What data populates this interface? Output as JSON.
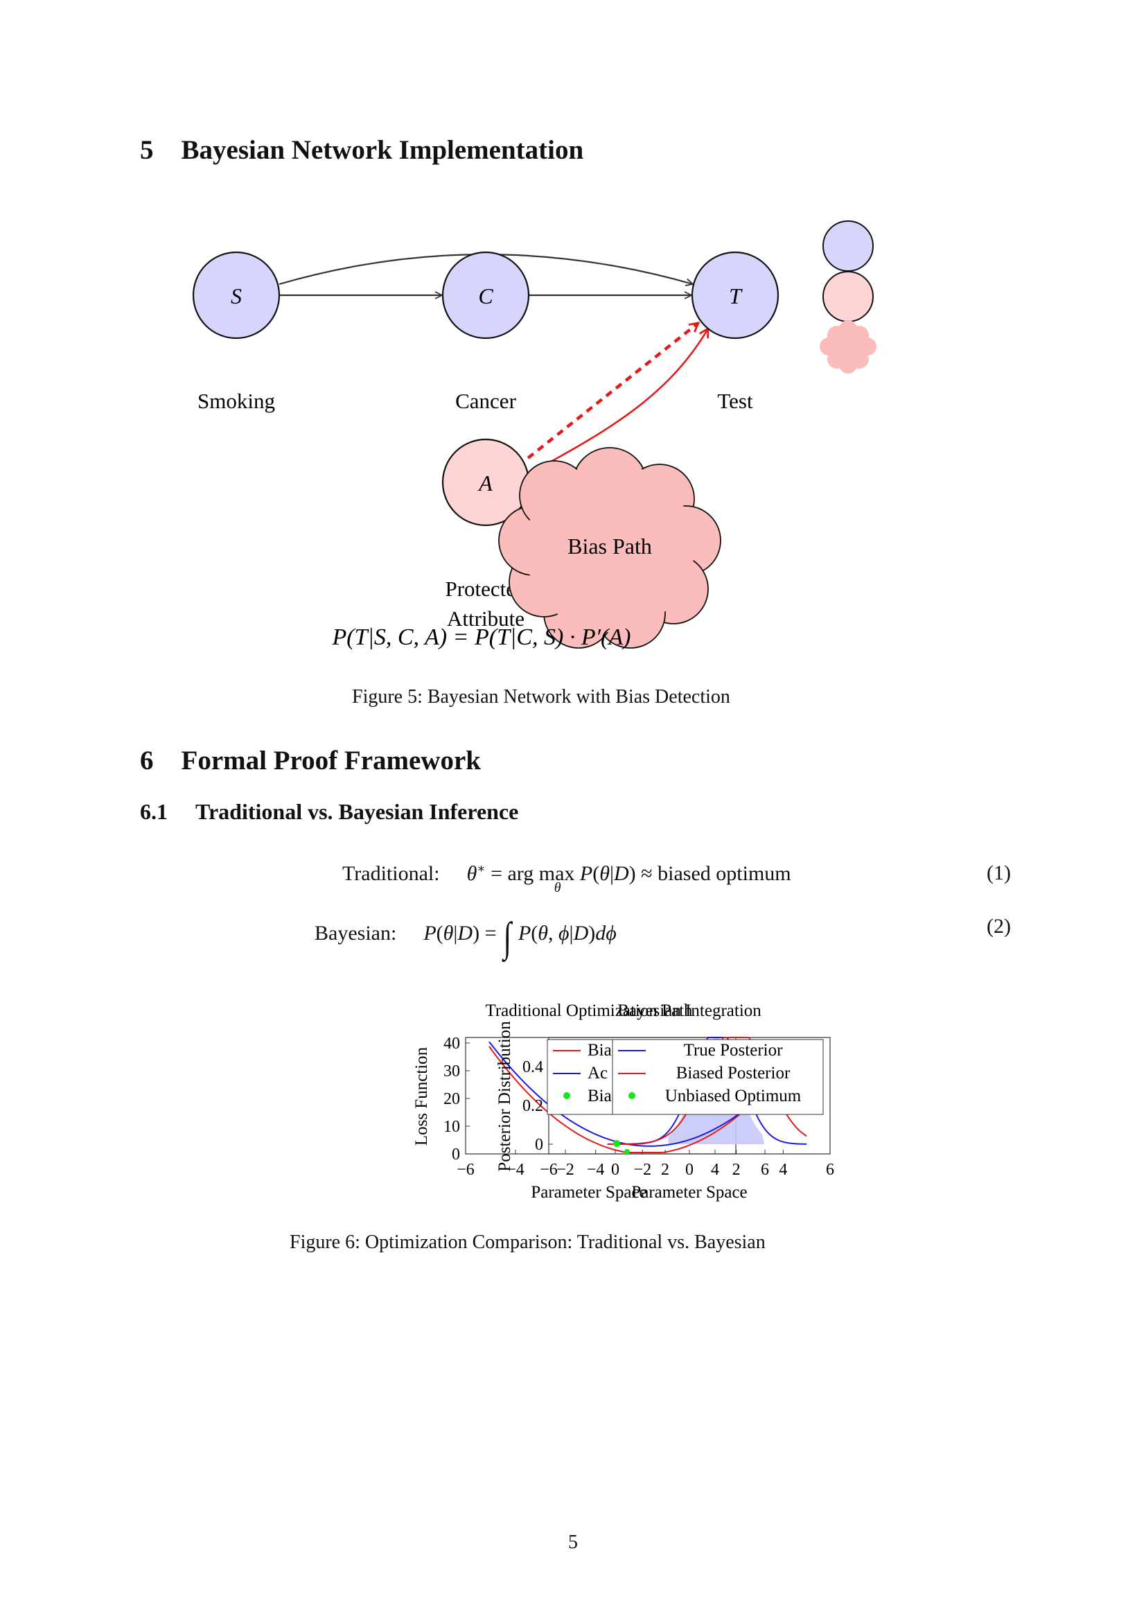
{
  "section5": {
    "number": "5",
    "title": "Bayesian Network Implementation"
  },
  "diagram": {
    "nodes": [
      {
        "id": "S",
        "symbol": "S",
        "label": "Smoking"
      },
      {
        "id": "C",
        "symbol": "C",
        "label": "Cancer"
      },
      {
        "id": "T",
        "symbol": "T",
        "label": "Test"
      },
      {
        "id": "A",
        "symbol": "A",
        "label_line1": "Protected",
        "label_line2": "Attribute"
      }
    ],
    "bias_cloud_label": "Bias Path",
    "formula": "P(T|S, C, A) = P(T|C, S) · P′(A)",
    "colors": {
      "node_blue": "#d6d6fc",
      "node_pink": "#fdd5d5",
      "cloud": "#fbbcbc",
      "bias_red": "#e41a1a"
    }
  },
  "figure5_caption": "Figure 5: Bayesian Network with Bias Detection",
  "section6": {
    "number": "6",
    "title": "Formal Proof Framework"
  },
  "subsection61": {
    "number": "6.1",
    "title": "Traditional vs. Bayesian Inference"
  },
  "equations": [
    {
      "label": "Traditional:",
      "number": "(1)"
    },
    {
      "label": "Bayesian:",
      "number": "(2)"
    }
  ],
  "chart_data": [
    {
      "type": "line",
      "title": "Traditional Optimization Path",
      "xlabel": "Parameter Space",
      "ylabel": "Loss Function",
      "xlim": [
        -6,
        6
      ],
      "ylim": [
        0,
        42
      ],
      "xticks": [
        "−6",
        "−4",
        "−2",
        "0",
        "2",
        "4",
        "6"
      ],
      "yticks": [
        "0",
        "10",
        "20",
        "30",
        "40"
      ],
      "legend": {
        "placement": "top-right",
        "entries": [
          "Bia",
          "Ac",
          "Bia"
        ]
      },
      "series": [
        {
          "name": "Bia",
          "color": "#e41a1a",
          "x": [
            -5,
            -4,
            -3,
            -2,
            -1,
            0,
            1,
            2,
            3,
            4,
            5
          ],
          "y": [
            38.2,
            26.6,
            17,
            9.4,
            3.8,
            0.2,
            -1.4,
            -1,
            1.4,
            5.8,
            12.2
          ]
        },
        {
          "name": "Ac",
          "color": "#1a1ae4",
          "x": [
            -5,
            -4,
            -3,
            -2,
            -1,
            0,
            1,
            2,
            3,
            4,
            5
          ],
          "y": [
            37.5,
            27,
            18.5,
            12,
            7.5,
            5,
            4.5,
            6,
            9.5,
            15,
            22.5
          ]
        }
      ],
      "points": [
        {
          "name": "Bia",
          "color": "#14e614",
          "x": 0.5,
          "y": 0.5
        }
      ]
    },
    {
      "type": "area",
      "title": "Bayesian Integration",
      "xlabel": "Parameter Space",
      "ylabel": "Posterior Distribution",
      "xlim": [
        -6,
        6
      ],
      "ylim": [
        -0.05,
        0.55
      ],
      "xticks": [
        "−6",
        "−4",
        "−2",
        "0",
        "2",
        "4",
        "6"
      ],
      "yticks": [
        "0",
        "0.2",
        "0.4"
      ],
      "legend": {
        "placement": "top-right",
        "entries": [
          "True Posterior",
          "Biased Posterior",
          "Unbiased Optimum"
        ]
      },
      "series": [
        {
          "name": "True Posterior",
          "color": "#1a1ae4"
        },
        {
          "name": "Biased Posterior",
          "color": "#e41a1a"
        }
      ],
      "points": [
        {
          "name": "Unbiased Optimum",
          "color": "#14e614",
          "x": -3.1,
          "y": 0
        }
      ],
      "fill_color": "#c8c8fa"
    }
  ],
  "figure6_caption": "Figure 6: Optimization Comparison: Traditional vs. Bayesian",
  "page_number": "5"
}
